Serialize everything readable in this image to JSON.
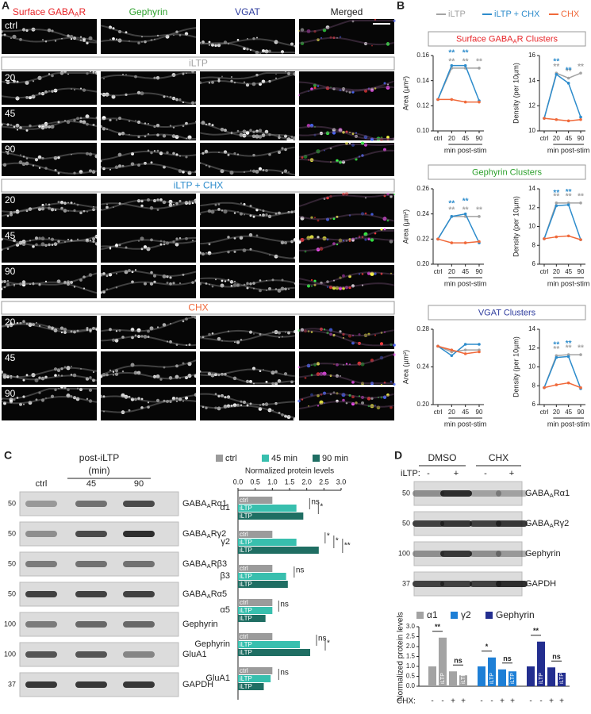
{
  "panel_a": {
    "letter": "A",
    "columns": [
      {
        "label": {
          "main": "Surface GABA",
          "sub": "A",
          "rest": "R"
        },
        "color": "#e8262a"
      },
      {
        "label": "Gephyrin",
        "color": "#2ca02c"
      },
      {
        "label": "VGAT",
        "color": "#2e3c9e"
      },
      {
        "label": "Merged",
        "color": "#222222"
      }
    ],
    "ctrl_label": "ctrl",
    "sections": [
      {
        "title": "iLTP",
        "color": "#a3a3a3",
        "rows": [
          20,
          45,
          90
        ]
      },
      {
        "title": "iLTP + CHX",
        "color": "#2d8ccc",
        "rows": [
          20,
          45,
          90
        ]
      },
      {
        "title": "CHX",
        "color": "#f0693a",
        "rows": [
          20,
          45,
          90
        ]
      }
    ]
  },
  "panel_b": {
    "letter": "B",
    "legend": [
      {
        "name": "iLTP",
        "color": "#a3a3a3"
      },
      {
        "name": "iLTP + CHX",
        "color": "#2d8ccc"
      },
      {
        "name": "CHX",
        "color": "#f0693a"
      }
    ],
    "sections": [
      {
        "title": {
          "main": "Surface GABA",
          "sub": "A",
          "rest": "R Clusters"
        },
        "color": "#e8262a"
      },
      {
        "title": "Gephyrin Clusters",
        "color": "#2ca02c"
      },
      {
        "title": "VGAT Clusters",
        "color": "#2e3c9e"
      }
    ]
  },
  "panel_c": {
    "letter": "C",
    "header": "post-iLTP",
    "header_unit": "(min)",
    "lanes": [
      "ctrl",
      45,
      90
    ],
    "rows": [
      {
        "mw": 50,
        "label": {
          "main": "GABA",
          "sub": "A",
          "rest": "Rα1"
        }
      },
      {
        "mw": 50,
        "label": {
          "main": "GABA",
          "sub": "A",
          "rest": "Rγ2"
        }
      },
      {
        "mw": 50,
        "label": {
          "main": "GABA",
          "sub": "A",
          "rest": "Rβ3"
        }
      },
      {
        "mw": 50,
        "label": {
          "main": "GABA",
          "sub": "A",
          "rest": "Rα5"
        }
      },
      {
        "mw": 100,
        "label": "Gephyrin"
      },
      {
        "mw": 100,
        "label": "GluA1"
      },
      {
        "mw": 37,
        "label": "GAPDH"
      }
    ]
  },
  "panel_d": {
    "letter": "D",
    "groups": [
      "DMSO",
      "CHX"
    ],
    "iltp_label": "iLTP:",
    "iltp_signs": [
      "-",
      "+",
      "-",
      "+"
    ],
    "rows": [
      {
        "mw": 50,
        "label": {
          "main": "GABA",
          "sub": "A",
          "rest": "Rα1"
        }
      },
      {
        "mw": 50,
        "label": {
          "main": "GABA",
          "sub": "A",
          "rest": "Rγ2"
        }
      },
      {
        "mw": 100,
        "label": "Gephyrin"
      },
      {
        "mw": 37,
        "label": "GAPDH"
      }
    ]
  },
  "chart_data": [
    {
      "type": "line",
      "ylabel": "Area (µm²)",
      "xlabel": "min post-stim",
      "categories": [
        "ctrl",
        20,
        45,
        90
      ],
      "ylim": [
        0.1,
        0.16
      ],
      "yticks": [
        {
          "value": 0.1,
          "label": "0.10"
        },
        0.12,
        0.14,
        0.16
      ],
      "series": [
        {
          "color": "#a3a3a3",
          "values": [
            0.125,
            0.15,
            0.15,
            0.15
          ],
          "marks": [
            null,
            "**",
            "**",
            "**"
          ]
        },
        {
          "color": "#2d8ccc",
          "values": [
            0.125,
            0.152,
            0.152,
            0.124
          ],
          "marks": [
            null,
            "**",
            "**",
            null
          ]
        },
        {
          "color": "#f0693a",
          "values": [
            0.125,
            0.125,
            0.123,
            0.123
          ],
          "marks": [
            null,
            null,
            null,
            null
          ]
        }
      ]
    },
    {
      "type": "line",
      "ylabel": "Density (per 10µm)",
      "xlabel": "min post-stim",
      "categories": [
        "ctrl",
        20,
        45,
        90
      ],
      "ylim": [
        10,
        16
      ],
      "yticks": [
        10,
        12,
        14,
        16
      ],
      "series": [
        {
          "color": "#a3a3a3",
          "values": [
            11,
            14.6,
            14.2,
            14.6
          ],
          "marks": [
            null,
            "**",
            "**",
            "**"
          ]
        },
        {
          "color": "#2d8ccc",
          "values": [
            11,
            14.5,
            13.8,
            11.1
          ],
          "marks": [
            null,
            "**",
            "**",
            null
          ]
        },
        {
          "color": "#f0693a",
          "values": [
            11,
            10.9,
            10.8,
            10.9
          ],
          "marks": [
            null,
            null,
            null,
            null
          ]
        }
      ]
    },
    {
      "type": "line",
      "ylabel": "Area (µm²)",
      "xlabel": "min post-stim",
      "categories": [
        "ctrl",
        20,
        45,
        90
      ],
      "ylim": [
        0.2,
        0.26
      ],
      "yticks": [
        {
          "value": 0.2,
          "label": "0.20"
        },
        0.22,
        0.24,
        0.26
      ],
      "series": [
        {
          "color": "#a3a3a3",
          "values": [
            0.22,
            0.238,
            0.238,
            0.238
          ],
          "marks": [
            null,
            "**",
            "**",
            "**"
          ]
        },
        {
          "color": "#2d8ccc",
          "values": [
            0.22,
            0.238,
            0.24,
            0.217
          ],
          "marks": [
            null,
            "**",
            "**",
            null
          ]
        },
        {
          "color": "#f0693a",
          "values": [
            0.22,
            0.217,
            0.217,
            0.218
          ],
          "marks": [
            null,
            null,
            null,
            null
          ]
        }
      ]
    },
    {
      "type": "line",
      "ylabel": "Density (per 10µm)",
      "xlabel": "min post-stim",
      "categories": [
        "ctrl",
        20,
        45,
        90
      ],
      "ylim": [
        6,
        14
      ],
      "yticks": [
        6,
        8,
        10,
        12,
        14
      ],
      "series": [
        {
          "color": "#a3a3a3",
          "values": [
            8.7,
            12.5,
            12.5,
            12.5
          ],
          "marks": [
            null,
            "**",
            "**",
            "**"
          ]
        },
        {
          "color": "#2d8ccc",
          "values": [
            8.7,
            12.2,
            12.3,
            8.6
          ],
          "marks": [
            null,
            "**",
            "**",
            null
          ]
        },
        {
          "color": "#f0693a",
          "values": [
            8.7,
            8.9,
            9,
            8.6
          ],
          "marks": [
            null,
            null,
            null,
            null
          ]
        }
      ]
    },
    {
      "type": "line",
      "ylabel": "Area (µm²)",
      "xlabel": "min post-stim",
      "categories": [
        "ctrl",
        20,
        45,
        90
      ],
      "ylim": [
        0.2,
        0.28
      ],
      "yticks": [
        {
          "value": 0.2,
          "label": "0.20"
        },
        0.24,
        0.28
      ],
      "series": [
        {
          "color": "#a3a3a3",
          "values": [
            0.262,
            0.256,
            0.258,
            0.258
          ],
          "marks": [
            null,
            null,
            null,
            null
          ]
        },
        {
          "color": "#2d8ccc",
          "values": [
            0.262,
            0.252,
            0.264,
            0.264
          ],
          "marks": [
            null,
            null,
            null,
            null
          ]
        },
        {
          "color": "#f0693a",
          "values": [
            0.262,
            0.258,
            0.254,
            0.256
          ],
          "marks": [
            null,
            null,
            null,
            null
          ]
        }
      ]
    },
    {
      "type": "line",
      "ylabel": "Density (per 10µm)",
      "xlabel": "min post-stim",
      "categories": [
        "ctrl",
        20,
        45,
        90
      ],
      "ylim": [
        6,
        14
      ],
      "yticks": [
        6,
        8,
        10,
        12,
        14
      ],
      "series": [
        {
          "color": "#a3a3a3",
          "values": [
            7.8,
            11.2,
            11.3,
            11.3
          ],
          "marks": [
            null,
            "**",
            "**",
            "**"
          ]
        },
        {
          "color": "#2d8ccc",
          "values": [
            7.8,
            11,
            11.1,
            7.7
          ],
          "marks": [
            null,
            "**",
            "**",
            null
          ]
        },
        {
          "color": "#f0693a",
          "values": [
            7.8,
            8.1,
            8.3,
            7.8
          ],
          "marks": [
            null,
            null,
            null,
            null
          ]
        }
      ]
    },
    {
      "type": "hbar",
      "xlabel": "Normalized protein levels",
      "categories": [
        "α1",
        "γ2",
        "β3",
        "α5",
        "Gephyrin",
        "GluA1"
      ],
      "xlim": [
        0,
        3
      ],
      "xticks": [
        {
          "value": 0,
          "label": "0.0"
        },
        0.5,
        {
          "value": 1,
          "label": "1.0"
        },
        1.5,
        {
          "value": 2,
          "label": "2.0"
        },
        2.5,
        {
          "value": 3,
          "label": "3.0"
        }
      ],
      "series": [
        {
          "name": "ctrl",
          "color": "#9b9b9b",
          "bar_label": "ctrl",
          "values": [
            1,
            1,
            1,
            1,
            1,
            1
          ]
        },
        {
          "name": "45 min",
          "color": "#38bfae",
          "bar_label": "iLTP",
          "values": [
            1.7,
            1.7,
            1.4,
            1,
            1.8,
            0.95
          ]
        },
        {
          "name": "90 min",
          "color": "#1f6e63",
          "bar_label": "iLTP",
          "values": [
            1.9,
            2.35,
            1.45,
            0.8,
            2.1,
            0.75
          ]
        }
      ],
      "significance": [
        [
          "ns",
          "*"
        ],
        [
          "*",
          "*",
          "**"
        ],
        [
          "ns"
        ],
        [
          "ns"
        ],
        [
          "ns",
          "*"
        ],
        [
          "ns"
        ]
      ]
    },
    {
      "type": "vbar",
      "ylabel": "Normalized protein levels",
      "ylim": [
        0,
        3
      ],
      "yticks": [
        {
          "value": 0,
          "label": "0.0"
        },
        0.5,
        {
          "value": 1,
          "label": "1.0"
        },
        1.5,
        {
          "value": 2,
          "label": "2.0"
        },
        2.5,
        {
          "value": 3,
          "label": "3.0"
        }
      ],
      "chx_label": "CHX:",
      "chx_signs": [
        "-",
        "-",
        "+",
        "+"
      ],
      "bar_labels": [
        null,
        "iLTP",
        null,
        "iLTP"
      ],
      "series": [
        {
          "name": "α1",
          "color": "#a3a3a3",
          "values": [
            1,
            2.45,
            0.75,
            0.55
          ]
        },
        {
          "name": "γ2",
          "color": "#1e7fd6",
          "values": [
            1,
            1.45,
            0.85,
            0.75
          ]
        },
        {
          "name": "Gephyrin",
          "color": "#232e8f",
          "values": [
            1,
            2.25,
            0.95,
            0.68
          ]
        }
      ],
      "significance": [
        [
          "**",
          "ns"
        ],
        [
          "*",
          "ns"
        ],
        [
          "**",
          "ns"
        ]
      ]
    }
  ]
}
